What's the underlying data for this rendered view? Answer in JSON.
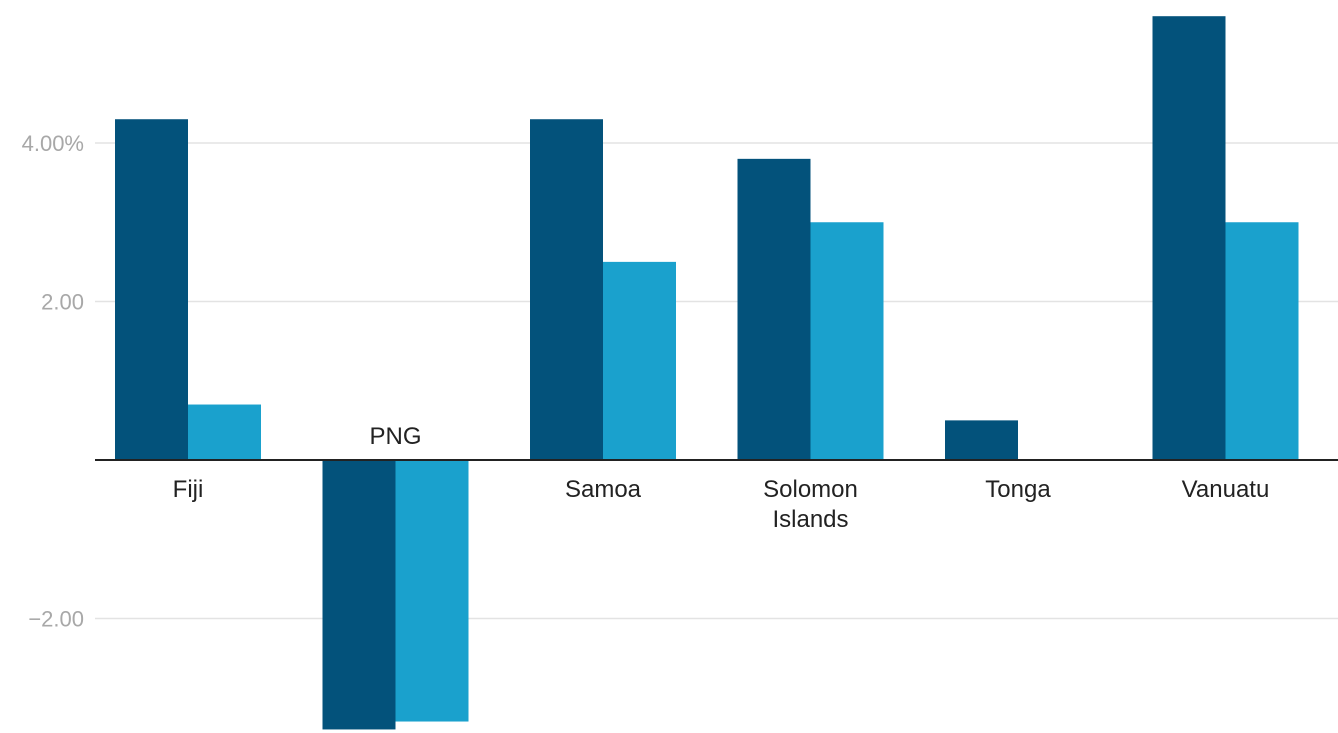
{
  "colors": {
    "series_1": "#03527b",
    "series_2": "#1aa1cd",
    "gridline": "#e3e3e3",
    "axis": "#222222",
    "tick_label": "#a8a8a8",
    "category_label": "#222222"
  },
  "chart_data": {
    "type": "bar",
    "title": "",
    "xlabel": "",
    "ylabel": "",
    "categories": [
      [
        "Fiji"
      ],
      [
        "PNG"
      ],
      [
        "Samoa"
      ],
      [
        "Solomon",
        "Islands"
      ],
      [
        "Tonga"
      ],
      [
        "Vanuatu"
      ]
    ],
    "series": [
      {
        "values": [
          4.3,
          -3.4,
          4.3,
          3.8,
          0.5,
          5.6
        ]
      },
      {
        "values": [
          0.7,
          -3.3,
          2.5,
          3.0,
          0.0,
          3.0
        ]
      }
    ],
    "ylim": [
      -3.45,
      5.8
    ],
    "yticks": [
      {
        "value": 4,
        "label": "4.00%"
      },
      {
        "value": 2,
        "label": "2.00"
      },
      {
        "value": -2,
        "label": "−2.00"
      }
    ],
    "grid": true,
    "legend": "none"
  }
}
